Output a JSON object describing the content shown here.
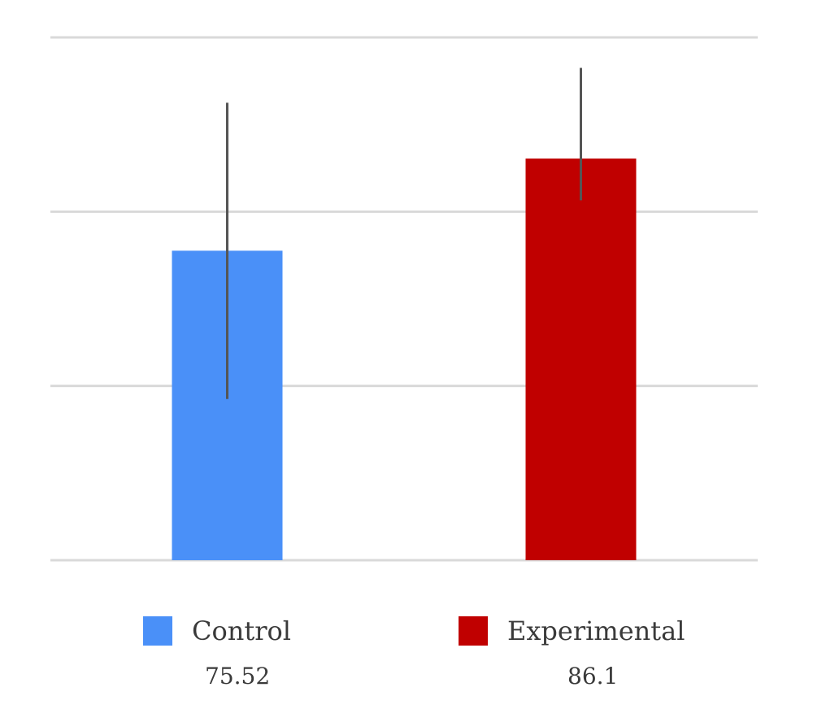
{
  "chart_data": {
    "type": "bar",
    "categories": [
      "Control",
      "Experimental"
    ],
    "values": [
      75.52,
      86.1
    ],
    "value_labels": [
      "75.52",
      "86.1"
    ],
    "error_bars": [
      {
        "low": 58.5,
        "high": 92.5
      },
      {
        "low": 81.3,
        "high": 96.5
      }
    ],
    "colors": [
      "#4a90f8",
      "#c00000"
    ],
    "error_bar_color": "#555555",
    "gridline_color": "#d9d9d9",
    "ylim": [
      40,
      100
    ],
    "yticks": [
      40,
      60,
      80,
      100
    ],
    "grid": true,
    "legend_position": "bottom",
    "title": "",
    "xlabel": "",
    "ylabel": ""
  }
}
